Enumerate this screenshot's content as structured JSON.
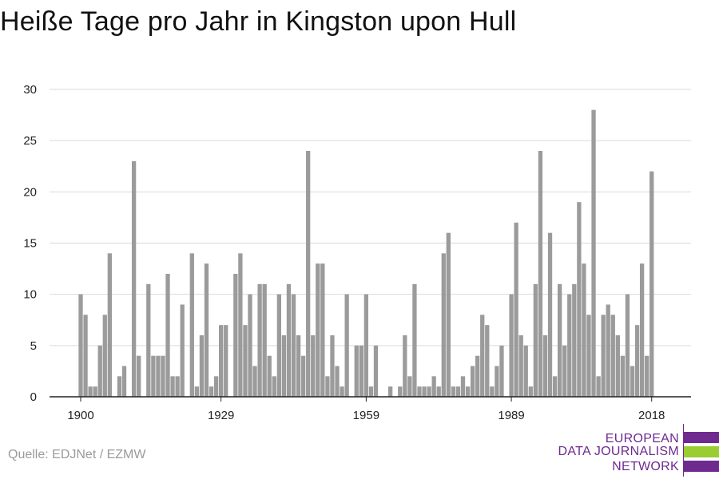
{
  "title": "Heiße Tage pro Jahr in Kingston upon Hull",
  "source": "Quelle: EDJNet / EZMW",
  "logo": {
    "lines": [
      "EUROPEAN",
      "DATA JOURNALISM",
      "NETWORK"
    ],
    "colors": {
      "purple": "#6e2a8f",
      "green": "#9acd32"
    }
  },
  "colors": {
    "bar": "#9b9b9b",
    "grid": "#d9d9d9",
    "axis": "#222222"
  },
  "chart_data": {
    "type": "bar",
    "title": "Heiße Tage pro Jahr in Kingston upon Hull",
    "xlabel": "",
    "ylabel": "",
    "ylim": [
      0,
      30
    ],
    "yticks": [
      0,
      5,
      10,
      15,
      20,
      25,
      30
    ],
    "xticks": [
      1900,
      1929,
      1959,
      1989,
      2018
    ],
    "grid": true,
    "x": [
      1900,
      1901,
      1902,
      1903,
      1904,
      1905,
      1906,
      1907,
      1908,
      1909,
      1910,
      1911,
      1912,
      1913,
      1914,
      1915,
      1916,
      1917,
      1918,
      1919,
      1920,
      1921,
      1922,
      1923,
      1924,
      1925,
      1926,
      1927,
      1928,
      1929,
      1930,
      1931,
      1932,
      1933,
      1934,
      1935,
      1936,
      1937,
      1938,
      1939,
      1940,
      1941,
      1942,
      1943,
      1944,
      1945,
      1946,
      1947,
      1948,
      1949,
      1950,
      1951,
      1952,
      1953,
      1954,
      1955,
      1956,
      1957,
      1958,
      1959,
      1960,
      1961,
      1962,
      1963,
      1964,
      1965,
      1966,
      1967,
      1968,
      1969,
      1970,
      1971,
      1972,
      1973,
      1974,
      1975,
      1976,
      1977,
      1978,
      1979,
      1980,
      1981,
      1982,
      1983,
      1984,
      1985,
      1986,
      1987,
      1988,
      1989,
      1990,
      1991,
      1992,
      1993,
      1994,
      1995,
      1996,
      1997,
      1998,
      1999,
      2000,
      2001,
      2002,
      2003,
      2004,
      2005,
      2006,
      2007,
      2008,
      2009,
      2010,
      2011,
      2012,
      2013,
      2014,
      2015,
      2016,
      2017,
      2018
    ],
    "values": [
      10,
      8,
      1,
      1,
      5,
      8,
      14,
      0,
      2,
      3,
      0,
      23,
      4,
      0,
      11,
      4,
      4,
      4,
      12,
      2,
      2,
      9,
      0,
      14,
      1,
      6,
      13,
      1,
      2,
      7,
      7,
      0,
      12,
      14,
      7,
      10,
      3,
      11,
      11,
      4,
      2,
      10,
      6,
      11,
      10,
      6,
      4,
      24,
      6,
      13,
      13,
      2,
      6,
      3,
      1,
      10,
      0,
      5,
      5,
      10,
      1,
      5,
      0,
      0,
      1,
      0,
      1,
      6,
      2,
      11,
      1,
      1,
      1,
      2,
      1,
      14,
      16,
      1,
      1,
      2,
      1,
      3,
      4,
      8,
      7,
      1,
      3,
      5,
      0,
      10,
      17,
      6,
      5,
      1,
      11,
      24,
      6,
      16,
      2,
      11,
      5,
      10,
      11,
      19,
      13,
      8,
      28,
      2,
      8,
      9,
      8,
      6,
      4,
      10,
      3,
      7,
      13,
      4,
      22
    ]
  }
}
